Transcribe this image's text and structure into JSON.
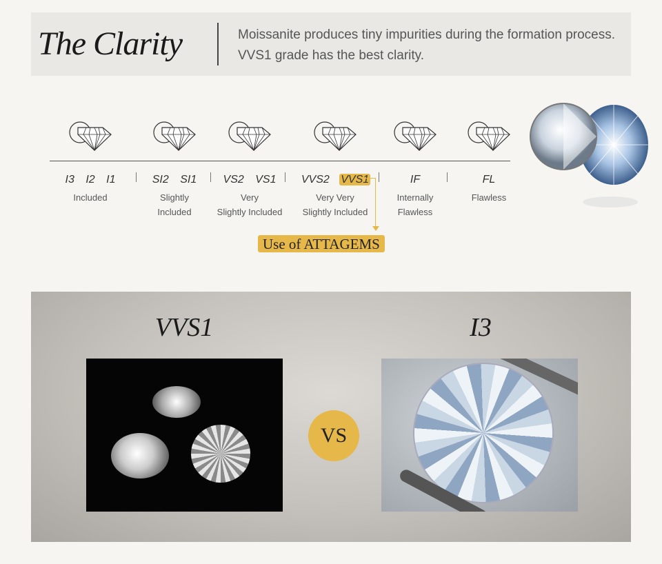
{
  "header": {
    "title": "The Clarity",
    "description": "Moissanite produces tiny impurities during the formation process. VVS1 grade has the best clarity."
  },
  "grades": [
    {
      "codes": [
        "I3",
        "I2",
        "I1"
      ],
      "desc": [
        "Included"
      ]
    },
    {
      "codes": [
        "SI2",
        "SI1"
      ],
      "desc": [
        "Slightly",
        "Included"
      ]
    },
    {
      "codes": [
        "VS2",
        "VS1"
      ],
      "desc": [
        "Very",
        "Slightly Included"
      ]
    },
    {
      "codes": [
        "VVS2",
        "VVS1"
      ],
      "desc": [
        "Very Very",
        "Slightly Included"
      ],
      "highlight": "VVS1"
    },
    {
      "codes": [
        "IF"
      ],
      "desc": [
        "Internally",
        "Flawless"
      ]
    },
    {
      "codes": [
        "FL"
      ],
      "desc": [
        "Flawless"
      ]
    }
  ],
  "callout": "Use of ATTAGEMS",
  "comparison": {
    "left_label": "VVS1",
    "right_label": "I3",
    "vs_label": "VS"
  },
  "colors": {
    "accent": "#e6b84a",
    "header_bg": "#e9e8e5",
    "background": "#f6f5f2"
  },
  "icons": [
    "diamond-magnifier-icon"
  ]
}
